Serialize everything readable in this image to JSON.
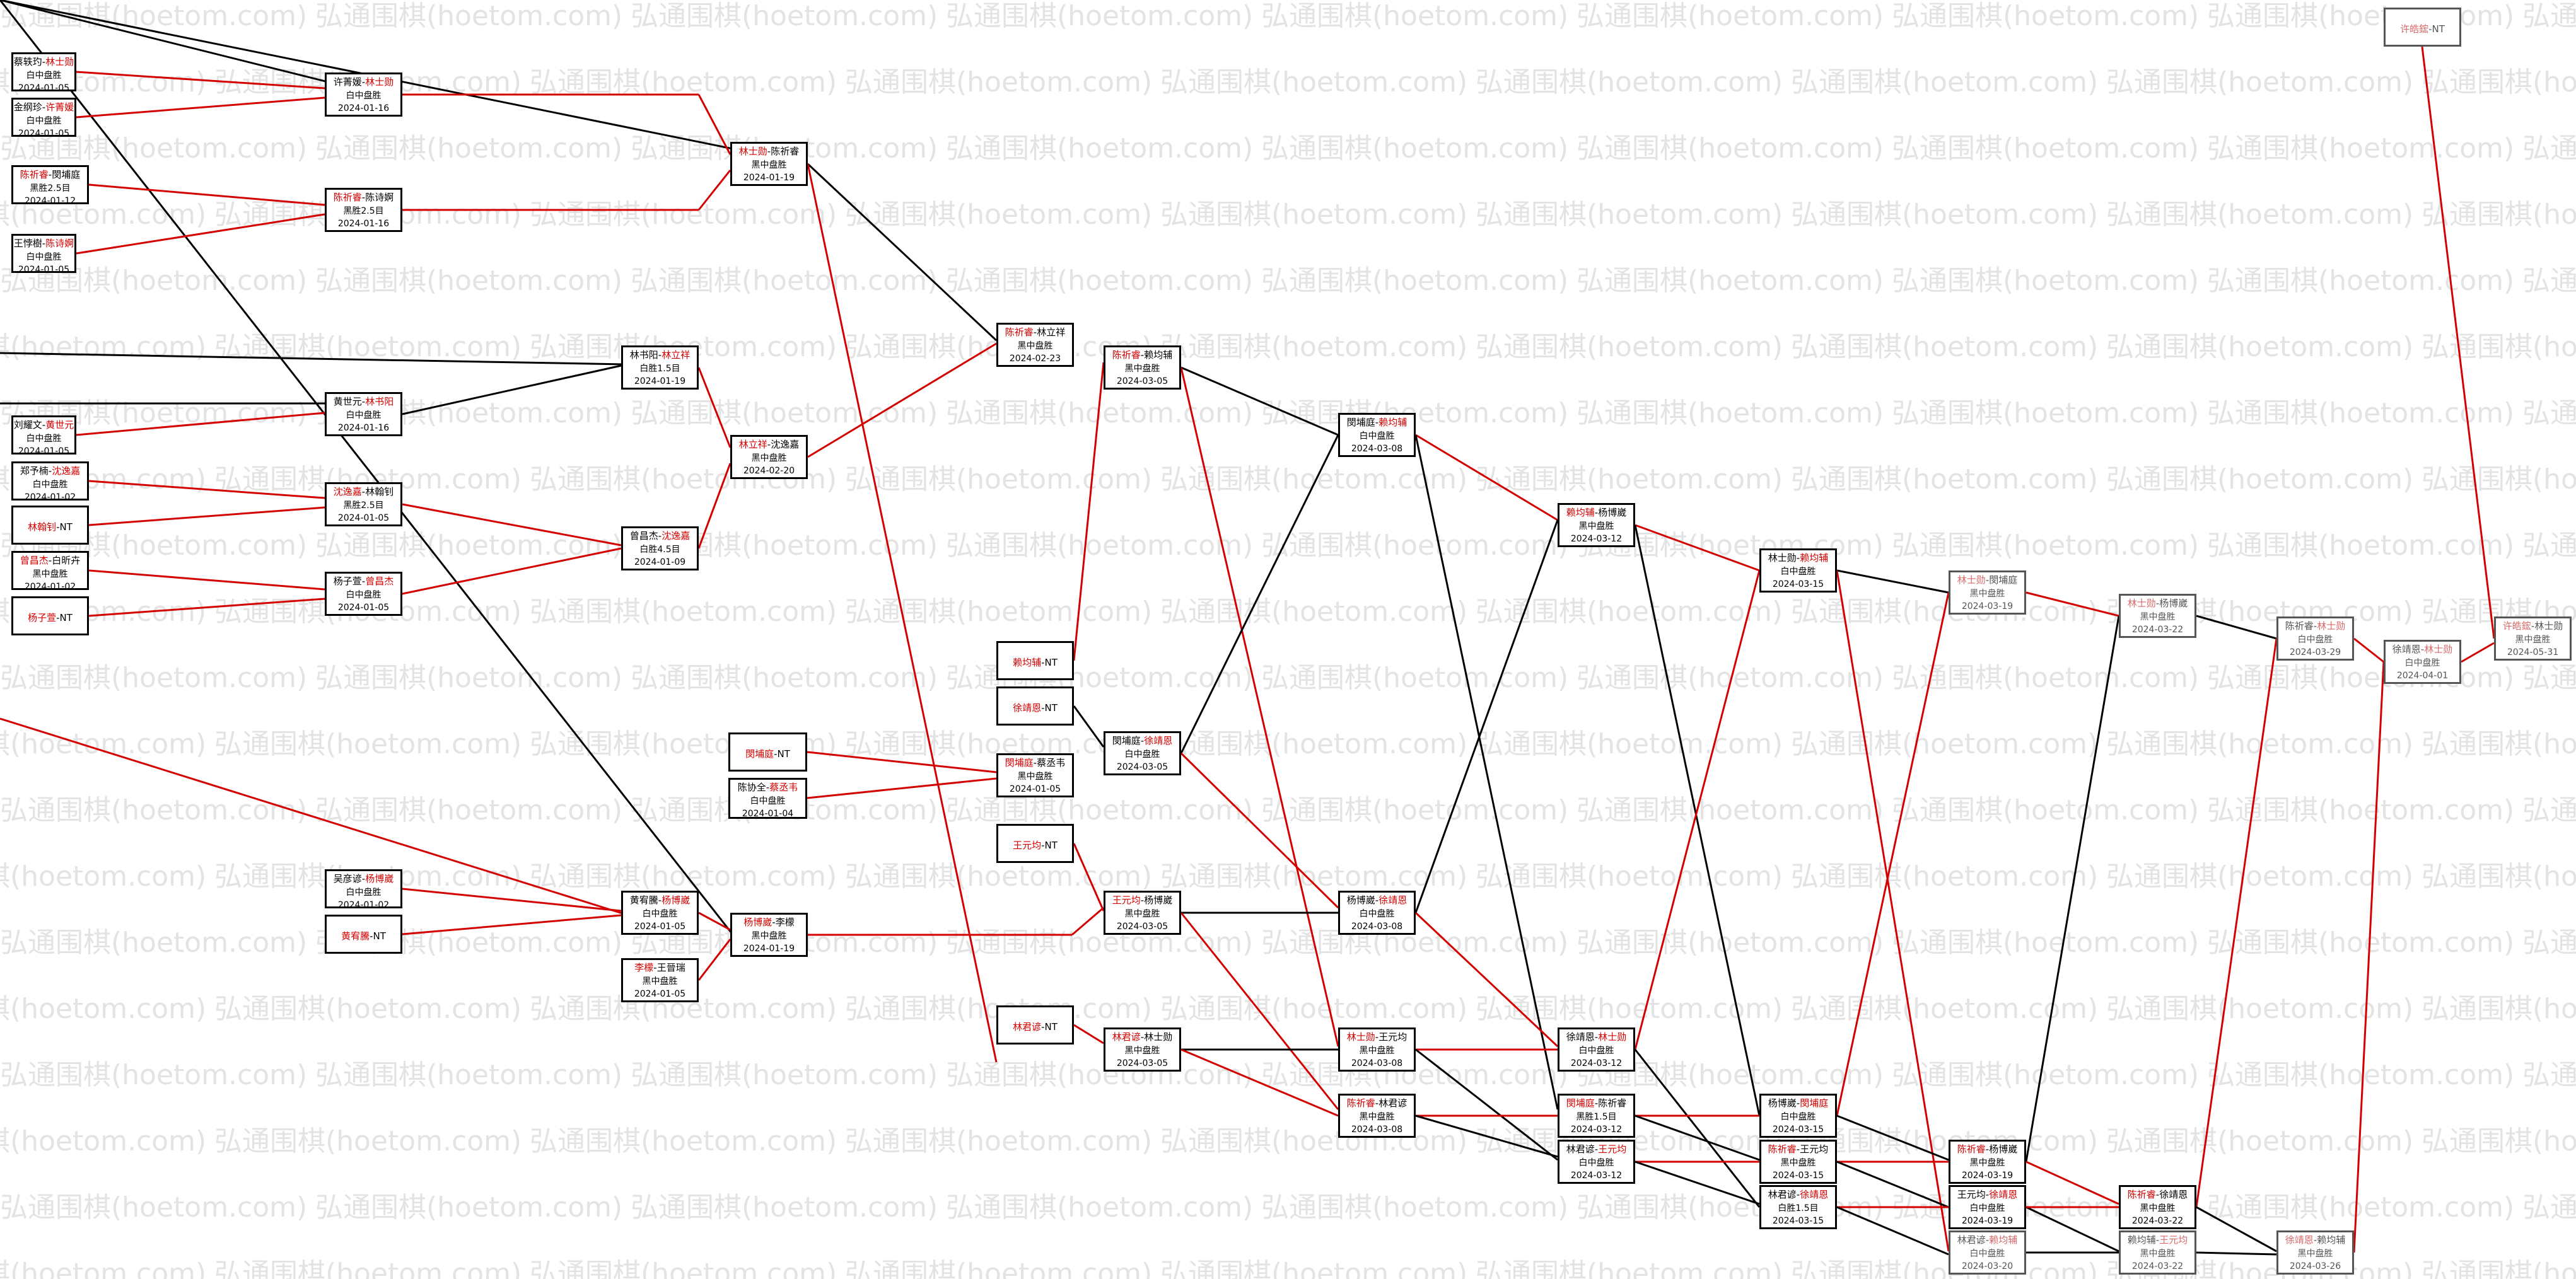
{
  "watermark_text": "弘通围棋(hoetom.com)",
  "colors": {
    "winner": "#d40000",
    "line_red": "#d40000",
    "line_black": "#000000",
    "watermark": "#e3e3e3"
  },
  "nodes": [
    {
      "id": "r0a",
      "p1": "蔡轶玓",
      "p2": "林士勋",
      "winner": 2,
      "result": "白中盘胜",
      "date": "2024-01-05"
    },
    {
      "id": "r0b",
      "p1": "金纲珍",
      "p2": "许菁媛",
      "winner": 2,
      "result": "白中盘胜",
      "date": "2024-01-05"
    },
    {
      "id": "r0c",
      "p1": "陈祈睿",
      "p2": "閔埔庭",
      "winner": 1,
      "result": "黑胜2.5目",
      "date": "2024-01-12"
    },
    {
      "id": "r0d",
      "p1": "王悖樹",
      "p2": "陈诗婀",
      "winner": 2,
      "result": "白中盘胜",
      "date": "2024-01-05"
    },
    {
      "id": "r0e",
      "p1": "刘耀文",
      "p2": "黄世元",
      "winner": 2,
      "result": "白中盘胜",
      "date": "2024-01-05"
    },
    {
      "id": "r0f",
      "p1": "郑予楠",
      "p2": "沈逸嘉",
      "winner": 2,
      "result": "白中盘胜",
      "date": "2024-01-02"
    },
    {
      "id": "r0g",
      "p1": "林翰钊",
      "p2": "NT",
      "winner": 1,
      "result": "",
      "date": ""
    },
    {
      "id": "r0h",
      "p1": "曾昌杰",
      "p2": "白昕卉",
      "winner": 1,
      "result": "黑中盘胜",
      "date": "2024-01-02"
    },
    {
      "id": "r0i",
      "p1": "杨子萱",
      "p2": "NT",
      "winner": 1,
      "result": "",
      "date": ""
    },
    {
      "id": "r1a",
      "p1": "许菁媛",
      "p2": "林士勋",
      "winner": 2,
      "result": "白中盘胜",
      "date": "2024-01-16"
    },
    {
      "id": "r1b",
      "p1": "陈祈睿",
      "p2": "陈诗婀",
      "winner": 1,
      "result": "黑胜2.5目",
      "date": "2024-01-16"
    },
    {
      "id": "r1c",
      "p1": "黄世元",
      "p2": "林书阳",
      "winner": 2,
      "result": "白中盘胜",
      "date": "2024-01-16"
    },
    {
      "id": "r1d",
      "p1": "沈逸嘉",
      "p2": "林翰钊",
      "winner": 1,
      "result": "黑胜2.5目",
      "date": "2024-01-05"
    },
    {
      "id": "r1e",
      "p1": "杨子萱",
      "p2": "曾昌杰",
      "winner": 2,
      "result": "白中盘胜",
      "date": "2024-01-05"
    },
    {
      "id": "r1f",
      "p1": "吴彦谚",
      "p2": "杨博崴",
      "winner": 2,
      "result": "白中盘胜",
      "date": "2024-01-02"
    },
    {
      "id": "r1g",
      "p1": "黄宥騰",
      "p2": "NT",
      "winner": 1,
      "result": "",
      "date": ""
    },
    {
      "id": "r2a",
      "p1": "林书阳",
      "p2": "林立祥",
      "winner": 2,
      "result": "白胜1.5目",
      "date": "2024-01-19"
    },
    {
      "id": "r2b",
      "p1": "曾昌杰",
      "p2": "沈逸嘉",
      "winner": 2,
      "result": "白胜4.5目",
      "date": "2024-01-09"
    },
    {
      "id": "r2c",
      "p1": "黄宥騰",
      "p2": "杨博崴",
      "winner": 2,
      "result": "白中盘胜",
      "date": "2024-01-05"
    },
    {
      "id": "r2d",
      "p1": "李檬",
      "p2": "王晉瑞",
      "winner": 1,
      "result": "黑中盘胜",
      "date": "2024-01-05"
    },
    {
      "id": "r3a",
      "p1": "林士勋",
      "p2": "陈祈睿",
      "winner": 1,
      "result": "黑中盘胜",
      "date": "2024-01-19"
    },
    {
      "id": "r3b",
      "p1": "林立祥",
      "p2": "沈逸嘉",
      "winner": 1,
      "result": "黑中盘胜",
      "date": "2024-02-20"
    },
    {
      "id": "r3c",
      "p1": "杨博崴",
      "p2": "李檬",
      "winner": 1,
      "result": "黑中盘胜",
      "date": "2024-01-19"
    },
    {
      "id": "r3d",
      "p1": "閔埔庭",
      "p2": "NT",
      "winner": 1,
      "result": "",
      "date": ""
    },
    {
      "id": "r3e",
      "p1": "陈协全",
      "p2": "蔡丞韦",
      "winner": 2,
      "result": "白中盘胜",
      "date": "2024-01-04"
    },
    {
      "id": "r4a",
      "p1": "陈祈睿",
      "p2": "林立祥",
      "winner": 1,
      "result": "黑中盘胜",
      "date": "2024-02-23"
    },
    {
      "id": "r4b",
      "p1": "赖均辅",
      "p2": "NT",
      "winner": 1,
      "result": "",
      "date": ""
    },
    {
      "id": "r4c",
      "p1": "徐靖恩",
      "p2": "NT",
      "winner": 1,
      "result": "",
      "date": ""
    },
    {
      "id": "r4d",
      "p1": "閔埔庭",
      "p2": "蔡丞韦",
      "winner": 1,
      "result": "黑中盘胜",
      "date": "2024-01-05"
    },
    {
      "id": "r4e",
      "p1": "王元均",
      "p2": "NT",
      "winner": 1,
      "result": "",
      "date": ""
    },
    {
      "id": "r4f",
      "p1": "林君谚",
      "p2": "NT",
      "winner": 1,
      "result": "",
      "date": ""
    },
    {
      "id": "r5a",
      "p1": "陈祈睿",
      "p2": "赖均辅",
      "winner": 1,
      "result": "黑中盘胜",
      "date": "2024-03-05"
    },
    {
      "id": "r5b",
      "p1": "閔埔庭",
      "p2": "徐靖恩",
      "winner": 2,
      "result": "白中盘胜",
      "date": "2024-03-05"
    },
    {
      "id": "r5c",
      "p1": "王元均",
      "p2": "杨博崴",
      "winner": 1,
      "result": "黑中盘胜",
      "date": "2024-03-05"
    },
    {
      "id": "r5d",
      "p1": "林君谚",
      "p2": "林士勋",
      "winner": 1,
      "result": "黑中盘胜",
      "date": "2024-03-05"
    },
    {
      "id": "r6a",
      "p1": "閔埔庭",
      "p2": "赖均辅",
      "winner": 2,
      "result": "白中盘胜",
      "date": "2024-03-08"
    },
    {
      "id": "r6b",
      "p1": "杨博崴",
      "p2": "徐靖恩",
      "winner": 2,
      "result": "白中盘胜",
      "date": "2024-03-08"
    },
    {
      "id": "r6c",
      "p1": "林士勋",
      "p2": "王元均",
      "winner": 1,
      "result": "黑中盘胜",
      "date": "2024-03-08"
    },
    {
      "id": "r6d",
      "p1": "陈祈睿",
      "p2": "林君谚",
      "winner": 1,
      "result": "黑中盘胜",
      "date": "2024-03-08"
    },
    {
      "id": "r7a",
      "p1": "赖均辅",
      "p2": "杨博崴",
      "winner": 1,
      "result": "黑中盘胜",
      "date": "2024-03-12"
    },
    {
      "id": "r7b",
      "p1": "徐靖恩",
      "p2": "林士勋",
      "winner": 2,
      "result": "白中盘胜",
      "date": "2024-03-12"
    },
    {
      "id": "r7c",
      "p1": "閔埔庭",
      "p2": "陈祈睿",
      "winner": 1,
      "result": "黑胜1.5目",
      "date": "2024-03-12"
    },
    {
      "id": "r7d",
      "p1": "林君谚",
      "p2": "王元均",
      "winner": 2,
      "result": "白中盘胜",
      "date": "2024-03-12"
    },
    {
      "id": "r8a",
      "p1": "林士勋",
      "p2": "赖均辅",
      "winner": 2,
      "result": "白中盘胜",
      "date": "2024-03-15"
    },
    {
      "id": "r8b",
      "p1": "杨博崴",
      "p2": "閔埔庭",
      "winner": 2,
      "result": "白中盘胜",
      "date": "2024-03-15"
    },
    {
      "id": "r8c",
      "p1": "陈祈睿",
      "p2": "王元均",
      "winner": 1,
      "result": "黑中盘胜",
      "date": "2024-03-15"
    },
    {
      "id": "r8d",
      "p1": "林君谚",
      "p2": "徐靖恩",
      "winner": 2,
      "result": "白胜1.5目",
      "date": "2024-03-15"
    },
    {
      "id": "r9a",
      "p1": "林士勋",
      "p2": "閔埔庭",
      "winner": 1,
      "result": "黑中盘胜",
      "date": "2024-03-19",
      "dim": true
    },
    {
      "id": "r9b",
      "p1": "陈祈睿",
      "p2": "杨博崴",
      "winner": 1,
      "result": "黑中盘胜",
      "date": "2024-03-19"
    },
    {
      "id": "r9c",
      "p1": "王元均",
      "p2": "徐靖恩",
      "winner": 2,
      "result": "白中盘胜",
      "date": "2024-03-19"
    },
    {
      "id": "r9d",
      "p1": "林君谚",
      "p2": "赖均辅",
      "winner": 2,
      "result": "白中盘胜",
      "date": "2024-03-20",
      "dim": true
    },
    {
      "id": "r10a",
      "p1": "林士勋",
      "p2": "杨博崴",
      "winner": 1,
      "result": "黑中盘胜",
      "date": "2024-03-22",
      "dim": true
    },
    {
      "id": "r10b",
      "p1": "陈祈睿",
      "p2": "徐靖恩",
      "winner": 1,
      "result": "黑中盘胜",
      "date": "2024-03-22"
    },
    {
      "id": "r10c",
      "p1": "赖均辅",
      "p2": "王元均",
      "winner": 2,
      "result": "黑中盘胜",
      "date": "2024-03-22",
      "dim": true
    },
    {
      "id": "r11a",
      "p1": "陈祈睿",
      "p2": "林士勋",
      "winner": 2,
      "result": "白中盘胜",
      "date": "2024-03-29",
      "dim": true
    },
    {
      "id": "r11b",
      "p1": "徐靖恩",
      "p2": "赖均辅",
      "winner": 1,
      "result": "黑中盘胜",
      "date": "2024-03-26",
      "dim": true
    },
    {
      "id": "r12a",
      "p1": "徐靖恩",
      "p2": "林士勋",
      "winner": 2,
      "result": "白中盘胜",
      "date": "2024-04-01",
      "dim": true
    },
    {
      "id": "r13a",
      "p1": "许皓鋐",
      "p2": "NT",
      "winner": 1,
      "result": "",
      "date": "",
      "dim": true
    },
    {
      "id": "r13b",
      "p1": "许皓鋐",
      "p2": "林士勋",
      "winner": 1,
      "result": "黑中盘胜",
      "date": "2024-05-31",
      "dim": true
    }
  ]
}
